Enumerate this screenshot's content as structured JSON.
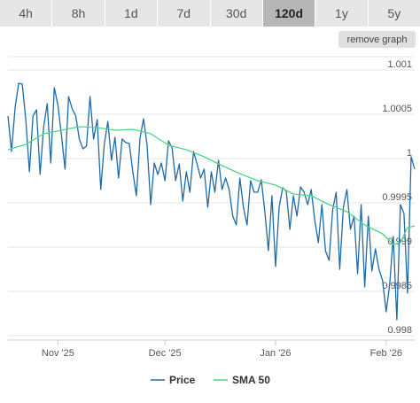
{
  "range_tabs": [
    {
      "label": "4h",
      "active": false
    },
    {
      "label": "8h",
      "active": false
    },
    {
      "label": "1d",
      "active": false
    },
    {
      "label": "7d",
      "active": false
    },
    {
      "label": "30d",
      "active": false
    },
    {
      "label": "120d",
      "active": true
    },
    {
      "label": "1y",
      "active": false
    },
    {
      "label": "5y",
      "active": false
    }
  ],
  "remove_graph_label": "remove graph",
  "chart_data": {
    "type": "line",
    "x_tick_labels": [
      "Nov '25",
      "Dec '25",
      "Jan '26",
      "Feb '26"
    ],
    "x_tick_days": [
      14,
      44,
      75,
      106
    ],
    "y_ticks": [
      0.998,
      0.9985,
      0.999,
      0.9995,
      1,
      1.0005,
      1.001
    ],
    "y_tick_labels": [
      "0.998",
      "0.9985",
      "0.999",
      "0.9995",
      "1",
      "1.0005",
      "1.001"
    ],
    "ylim": [
      0.99795,
      1.00115
    ],
    "xlim": [
      0,
      114
    ],
    "grid": true,
    "legend_position": "bottom",
    "series": [
      {
        "name": "Price",
        "color": "#1f6aa5",
        "x": [
          0,
          1,
          2,
          3,
          4,
          5,
          6,
          7,
          8,
          9,
          10,
          11,
          12,
          13,
          14,
          15,
          16,
          17,
          18,
          19,
          20,
          21,
          22,
          23,
          24,
          25,
          26,
          27,
          28,
          29,
          30,
          31,
          32,
          33,
          34,
          35,
          36,
          37,
          38,
          39,
          40,
          41,
          42,
          43,
          44,
          45,
          46,
          47,
          48,
          49,
          50,
          51,
          52,
          53,
          54,
          55,
          56,
          57,
          58,
          59,
          60,
          61,
          62,
          63,
          64,
          65,
          66,
          67,
          68,
          69,
          70,
          71,
          72,
          73,
          74,
          75,
          76,
          77,
          78,
          79,
          80,
          81,
          82,
          83,
          84,
          85,
          86,
          87,
          88,
          89,
          90,
          91,
          92,
          93,
          94,
          95,
          96,
          97,
          98,
          99,
          100,
          101,
          102,
          103,
          104,
          105,
          106,
          107,
          108,
          109,
          110,
          111,
          112,
          113,
          114
        ],
        "y": [
          1.00048,
          1.00008,
          1.00058,
          1.00085,
          1.00084,
          1.00044,
          0.99985,
          1.00048,
          1.00055,
          0.99982,
          1.00036,
          1.00062,
          0.99995,
          1.0008,
          1.0006,
          1.00026,
          0.99988,
          1.0007,
          1.00056,
          1.00048,
          1.00022,
          1.00011,
          1.00014,
          1.0007,
          1.00022,
          1.00044,
          0.99965,
          1.00016,
          1.00042,
          0.99998,
          1.00024,
          0.99978,
          1.00022,
          1.00018,
          1.00017,
          0.99985,
          0.99958,
          1.00023,
          1.00045,
          1.00015,
          0.99948,
          0.99995,
          0.99982,
          0.99995,
          0.99975,
          1.0002,
          1.00012,
          0.99975,
          0.99994,
          0.99952,
          0.99985,
          0.99962,
          1.00008,
          0.99994,
          0.99978,
          0.99988,
          0.99945,
          0.99985,
          0.99962,
          0.99998,
          0.99965,
          0.99978,
          0.99965,
          0.99935,
          0.99925,
          0.99978,
          0.99945,
          0.99925,
          0.99975,
          0.99962,
          0.99962,
          0.99976,
          0.9994,
          0.99896,
          0.99958,
          0.99878,
          0.99945,
          0.99967,
          0.99963,
          0.9992,
          0.99958,
          0.99935,
          0.99968,
          0.99962,
          0.99948,
          0.99965,
          0.9993,
          0.99905,
          0.99948,
          0.99896,
          0.99885,
          0.99942,
          0.99962,
          0.99875,
          0.99945,
          0.99965,
          0.9992,
          0.99935,
          0.9987,
          0.99948,
          0.99855,
          0.99935,
          0.99873,
          0.99898,
          0.99875,
          0.99862,
          0.99827,
          0.99858,
          0.99912,
          0.99818,
          0.99948,
          0.99938,
          0.99848,
          1.00002,
          0.99988
        ]
      },
      {
        "name": "SMA 50",
        "color": "#4cd680",
        "x": [
          0,
          5,
          10,
          15,
          20,
          25,
          30,
          35,
          40,
          45,
          50,
          55,
          60,
          65,
          70,
          75,
          80,
          85,
          90,
          95,
          100,
          105,
          108,
          110,
          112,
          114
        ],
        "y": [
          1.0001,
          1.00016,
          1.00028,
          1.00032,
          1.00036,
          1.00035,
          1.00032,
          1.00033,
          1.00028,
          1.00015,
          1.0001,
          1.00002,
          0.99992,
          0.99983,
          0.99975,
          0.9997,
          0.9996,
          0.99958,
          0.99948,
          0.9994,
          0.99925,
          0.99915,
          0.99903,
          0.99905,
          0.99922,
          0.99924
        ]
      }
    ]
  }
}
